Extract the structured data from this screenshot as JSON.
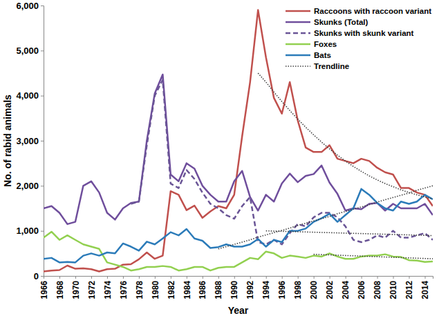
{
  "chart_data": {
    "type": "line",
    "x_label": "Year",
    "y_label": "No. of rabid animals",
    "x": [
      1966,
      1967,
      1968,
      1969,
      1970,
      1971,
      1972,
      1973,
      1974,
      1975,
      1976,
      1977,
      1978,
      1979,
      1980,
      1981,
      1982,
      1983,
      1984,
      1985,
      1986,
      1987,
      1988,
      1989,
      1990,
      1991,
      1992,
      1993,
      1994,
      1995,
      1996,
      1997,
      1998,
      1999,
      2000,
      2001,
      2002,
      2003,
      2004,
      2005,
      2006,
      2007,
      2008,
      2009,
      2010,
      2011,
      2012,
      2013,
      2014,
      2015
    ],
    "xlim": [
      1966,
      2015
    ],
    "xticks": [
      1966,
      1968,
      1970,
      1972,
      1974,
      1976,
      1978,
      1980,
      1982,
      1984,
      1986,
      1988,
      1990,
      1992,
      1994,
      1996,
      1998,
      2000,
      2002,
      2004,
      2006,
      2008,
      2010,
      2012,
      2014
    ],
    "ylim": [
      0,
      6000
    ],
    "yticks": [
      0,
      {
        "value": 1000,
        "label": "1,000"
      },
      {
        "value": 2000,
        "label": "2,000"
      },
      {
        "value": 3000,
        "label": "3,000"
      },
      {
        "value": 4000,
        "label": "4,000"
      },
      {
        "value": 5000,
        "label": "5,000"
      },
      {
        "value": 6000,
        "label": "6,000"
      }
    ],
    "grid": false,
    "legend": "upper right",
    "series": [
      {
        "name": "Raccoons with raccoon variant",
        "color": "#c0504d",
        "line_style": "solid",
        "values": [
          100,
          120,
          130,
          230,
          160,
          170,
          150,
          100,
          150,
          160,
          250,
          260,
          370,
          520,
          380,
          450,
          1880,
          1800,
          1460,
          1560,
          1290,
          1430,
          1550,
          1500,
          1800,
          3100,
          4300,
          5900,
          4850,
          3950,
          3600,
          4300,
          3450,
          2850,
          2750,
          2750,
          2900,
          2600,
          2550,
          2500,
          2600,
          2550,
          2400,
          2300,
          2250,
          1950,
          1950,
          1850,
          1800,
          1550
        ]
      },
      {
        "name": "Skunks (Total)",
        "color": "#6f4e9c",
        "line_style": "solid",
        "values": [
          1500,
          1550,
          1400,
          1150,
          1200,
          2000,
          2100,
          1850,
          1400,
          1250,
          1500,
          1620,
          1650,
          3000,
          4050,
          4470,
          2250,
          2100,
          2500,
          2380,
          2000,
          1800,
          1650,
          1650,
          2100,
          2330,
          1750,
          1450,
          1800,
          1650,
          2050,
          2270,
          2080,
          2220,
          2260,
          2450,
          2070,
          1820,
          1450,
          1500,
          1480,
          1600,
          1620,
          1450,
          1600,
          1500,
          1500,
          1500,
          1600,
          1350
        ]
      },
      {
        "name": "Skunks with skunk variant",
        "color": "#6a5596",
        "line_style": "dashed",
        "values": [
          null,
          null,
          null,
          null,
          null,
          null,
          null,
          null,
          null,
          null,
          null,
          1600,
          1650,
          2900,
          4000,
          4350,
          2050,
          1950,
          2350,
          2150,
          1850,
          1600,
          1500,
          1350,
          1270,
          1550,
          1750,
          750,
          700,
          800,
          700,
          950,
          1150,
          1100,
          1300,
          1400,
          1400,
          1300,
          1100,
          800,
          750,
          800,
          900,
          850,
          1000,
          850,
          850,
          900,
          950,
          800
        ]
      },
      {
        "name": "Foxes",
        "color": "#92d050",
        "line_style": "solid",
        "values": [
          850,
          980,
          800,
          900,
          800,
          700,
          650,
          600,
          300,
          250,
          200,
          120,
          150,
          200,
          200,
          220,
          200,
          120,
          150,
          200,
          200,
          120,
          180,
          200,
          200,
          300,
          400,
          370,
          540,
          500,
          400,
          450,
          430,
          400,
          450,
          430,
          500,
          430,
          380,
          380,
          430,
          450,
          450,
          480,
          430,
          420,
          350,
          340,
          310,
          320
        ]
      },
      {
        "name": "Bats",
        "color": "#2b7bb9",
        "line_style": "solid",
        "values": [
          380,
          400,
          300,
          310,
          300,
          450,
          500,
          450,
          520,
          500,
          720,
          650,
          560,
          760,
          700,
          830,
          970,
          900,
          1040,
          830,
          780,
          620,
          640,
          700,
          650,
          650,
          700,
          820,
          650,
          800,
          750,
          1000,
          1000,
          1050,
          1200,
          1280,
          1380,
          1200,
          1350,
          1500,
          1930,
          1800,
          1620,
          1500,
          1450,
          1650,
          1600,
          1650,
          1800,
          1700
        ]
      },
      {
        "name": "Trendline",
        "color": "#404040",
        "line_style": "dotted",
        "values": [
          null,
          null,
          null,
          null,
          null,
          null,
          null,
          null,
          null,
          null,
          null,
          null,
          null,
          null,
          null,
          null,
          null,
          null,
          null,
          null,
          null,
          null,
          null,
          null,
          null,
          null,
          null,
          4500,
          4300,
          4080,
          3870,
          3670,
          3480,
          3300,
          3130,
          2970,
          2820,
          2680,
          2550,
          2430,
          2320,
          2220,
          2130,
          2050,
          1980,
          1910,
          1850,
          1800,
          1750,
          1710
        ]
      },
      {
        "color": "#404040",
        "line_style": "dotted",
        "values": [
          null,
          null,
          null,
          null,
          null,
          null,
          null,
          null,
          null,
          null,
          null,
          null,
          null,
          null,
          null,
          null,
          null,
          null,
          null,
          null,
          null,
          null,
          null,
          null,
          null,
          null,
          null,
          null,
          1000,
          995,
          990,
          985,
          980,
          975,
          970,
          965,
          960,
          955,
          950,
          945,
          940,
          935,
          930,
          925,
          920,
          915,
          910,
          905,
          900,
          895
        ]
      },
      {
        "color": "#404040",
        "line_style": "dotted",
        "values": [
          null,
          null,
          null,
          null,
          null,
          null,
          null,
          null,
          null,
          null,
          null,
          null,
          null,
          null,
          null,
          null,
          null,
          null,
          null,
          null,
          null,
          null,
          null,
          null,
          null,
          null,
          null,
          null,
          null,
          null,
          null,
          null,
          null,
          null,
          480,
          473,
          467,
          460,
          453,
          447,
          440,
          433,
          427,
          420,
          413,
          407,
          400,
          393,
          387,
          380
        ]
      },
      {
        "color": "#404040",
        "line_style": "dotted",
        "values": [
          null,
          null,
          null,
          null,
          null,
          null,
          null,
          null,
          null,
          null,
          null,
          null,
          null,
          null,
          null,
          null,
          null,
          null,
          null,
          null,
          null,
          null,
          600,
          650,
          700,
          750,
          800,
          860,
          910,
          960,
          1010,
          1060,
          1120,
          1170,
          1220,
          1270,
          1320,
          1380,
          1430,
          1480,
          1530,
          1580,
          1640,
          1690,
          1740,
          1790,
          1840,
          1900,
          1950,
          2000
        ]
      }
    ]
  }
}
